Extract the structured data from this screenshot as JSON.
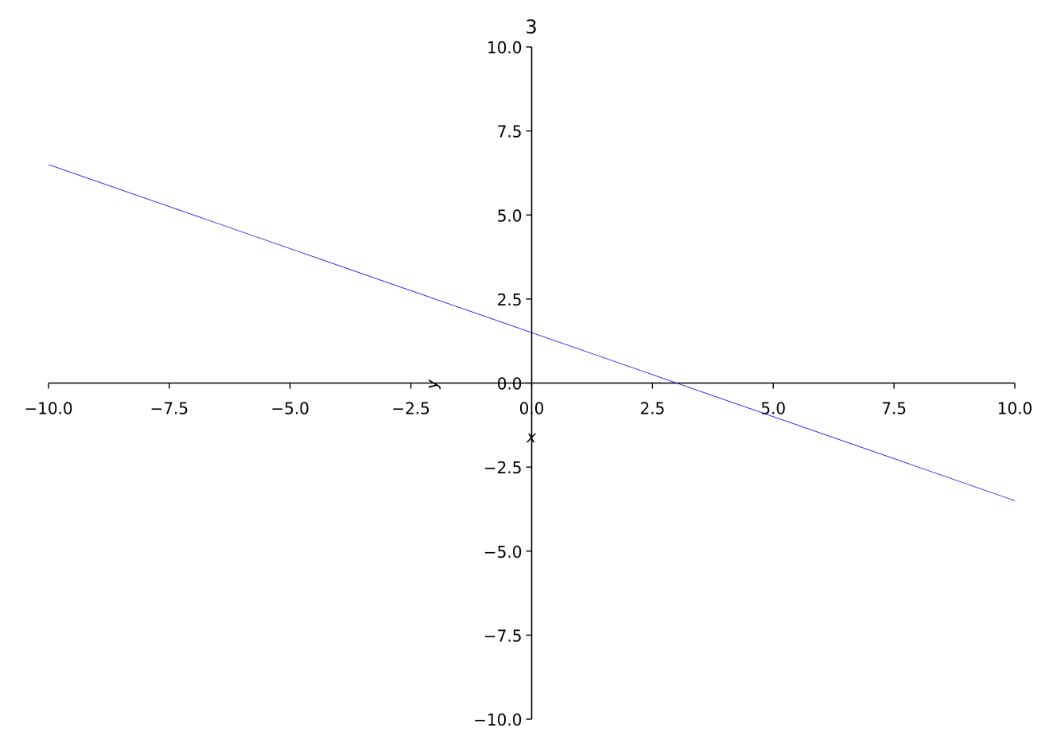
{
  "chart_data": {
    "type": "line",
    "title": "3",
    "xlabel": "x",
    "ylabel": "y",
    "xlim": [
      -10,
      10
    ],
    "ylim": [
      -10,
      10
    ],
    "grid": false,
    "xticks": [
      "−10.0",
      "−7.5",
      "−5.0",
      "−2.5",
      "0.0",
      "2.5",
      "5.0",
      "7.5",
      "10.0"
    ],
    "yticks": [
      "−10.0",
      "−7.5",
      "−5.0",
      "−2.5",
      "0.0",
      "2.5",
      "5.0",
      "7.5",
      "10.0"
    ],
    "xtick_values": [
      -10,
      -7.5,
      -5,
      -2.5,
      0,
      2.5,
      5,
      7.5,
      10
    ],
    "ytick_values": [
      -10,
      -7.5,
      -5,
      -2.5,
      0,
      2.5,
      5,
      7.5,
      10
    ],
    "series": [
      {
        "x": [
          -10,
          10
        ],
        "y": [
          6.5,
          -3.5
        ],
        "color": "#0000ff"
      }
    ]
  }
}
